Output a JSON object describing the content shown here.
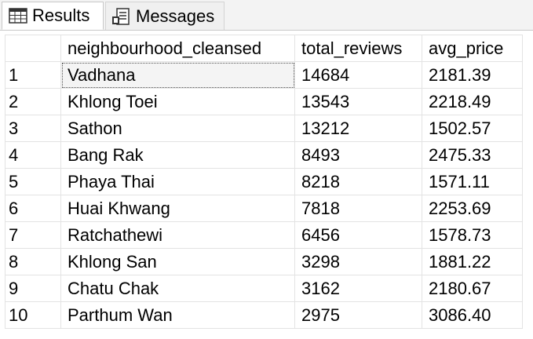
{
  "tabs": {
    "results_label": "Results",
    "messages_label": "Messages",
    "results_icon": "grid-icon",
    "messages_icon": "document-icon"
  },
  "columns": [
    "",
    "neighbourhood_cleansed",
    "total_reviews",
    "avg_price"
  ],
  "rows": [
    {
      "num": "1",
      "neighbourhood": "Vadhana",
      "total_reviews": "14684",
      "avg_price": "2181.39"
    },
    {
      "num": "2",
      "neighbourhood": "Khlong Toei",
      "total_reviews": "13543",
      "avg_price": "2218.49"
    },
    {
      "num": "3",
      "neighbourhood": "Sathon",
      "total_reviews": "13212",
      "avg_price": "1502.57"
    },
    {
      "num": "4",
      "neighbourhood": "Bang Rak",
      "total_reviews": "8493",
      "avg_price": "2475.33"
    },
    {
      "num": "5",
      "neighbourhood": "Phaya Thai",
      "total_reviews": "8218",
      "avg_price": "1571.11"
    },
    {
      "num": "6",
      "neighbourhood": "Huai Khwang",
      "total_reviews": "7818",
      "avg_price": "2253.69"
    },
    {
      "num": "7",
      "neighbourhood": "Ratchathewi",
      "total_reviews": "6456",
      "avg_price": "1578.73"
    },
    {
      "num": "8",
      "neighbourhood": "Khlong San",
      "total_reviews": "3298",
      "avg_price": "1881.22"
    },
    {
      "num": "9",
      "neighbourhood": "Chatu Chak",
      "total_reviews": "3162",
      "avg_price": "2180.67"
    },
    {
      "num": "10",
      "neighbourhood": "Parthum Wan",
      "total_reviews": "2975",
      "avg_price": "3086.40"
    }
  ]
}
